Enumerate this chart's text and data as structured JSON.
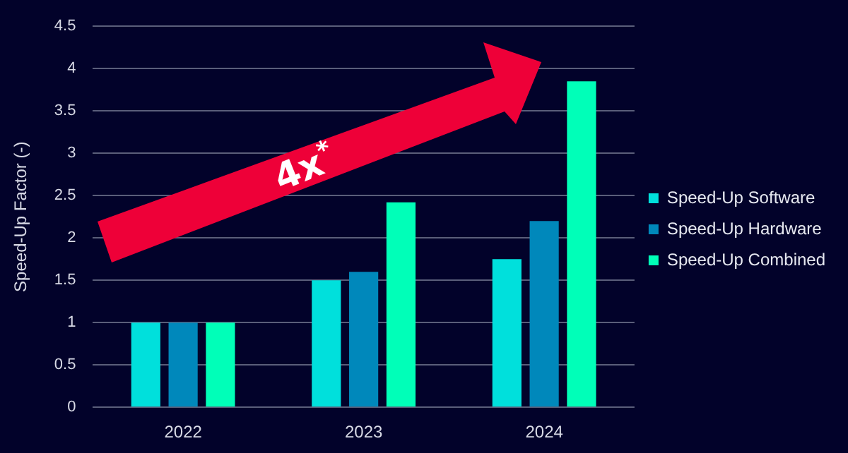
{
  "chart_data": {
    "type": "bar",
    "ylabel": "Speed-Up Factor (-)",
    "categories": [
      "2022",
      "2023",
      "2024"
    ],
    "series": [
      {
        "name": "Speed-Up Software",
        "color": "#00e0dc",
        "values": [
          1,
          1.5,
          1.75
        ]
      },
      {
        "name": "Speed-Up Hardware",
        "color": "#0088bb",
        "values": [
          1,
          1.6,
          2.2
        ]
      },
      {
        "name": "Speed-Up Combined",
        "color": "#00ffb8",
        "values": [
          1,
          2.42,
          3.85
        ]
      }
    ],
    "ylim": [
      0,
      4.5
    ],
    "yticks": [
      0,
      0.5,
      1,
      1.5,
      2,
      2.5,
      3,
      3.5,
      4,
      4.5
    ],
    "grid": "y",
    "legend": "right",
    "annotations": [
      "4x$^{*}$"
    ]
  }
}
